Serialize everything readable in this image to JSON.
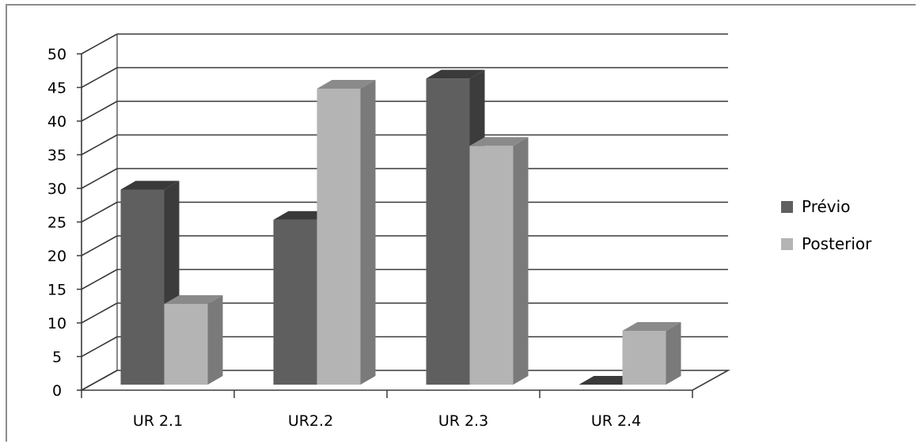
{
  "chart_data": {
    "type": "bar",
    "title": "",
    "xlabel": "",
    "ylabel": "",
    "categories": [
      "UR 2.1",
      "UR2.2",
      "UR 2.3",
      "UR 2.4"
    ],
    "series": [
      {
        "name": "Prévio",
        "values": [
          29,
          24.5,
          45.5,
          0
        ]
      },
      {
        "name": "Posterior",
        "values": [
          12,
          44,
          35.5,
          8
        ]
      }
    ],
    "ylim": [
      0,
      50
    ],
    "yticks": [
      "0",
      "5",
      "10",
      "15",
      "20",
      "25",
      "30",
      "35",
      "40",
      "45",
      "50"
    ],
    "grid": true,
    "legend_position": "right",
    "colors": {
      "series": [
        "#5f5f5f",
        "#b4b4b4"
      ],
      "series_side": [
        "#3c3c3c",
        "#7a7a7a"
      ],
      "series_top": [
        "#3a3a3a",
        "#8a8a8a"
      ],
      "grid": "#3a3a3a",
      "floor": "#3a3a3a"
    },
    "projection": "3d-clustered"
  }
}
